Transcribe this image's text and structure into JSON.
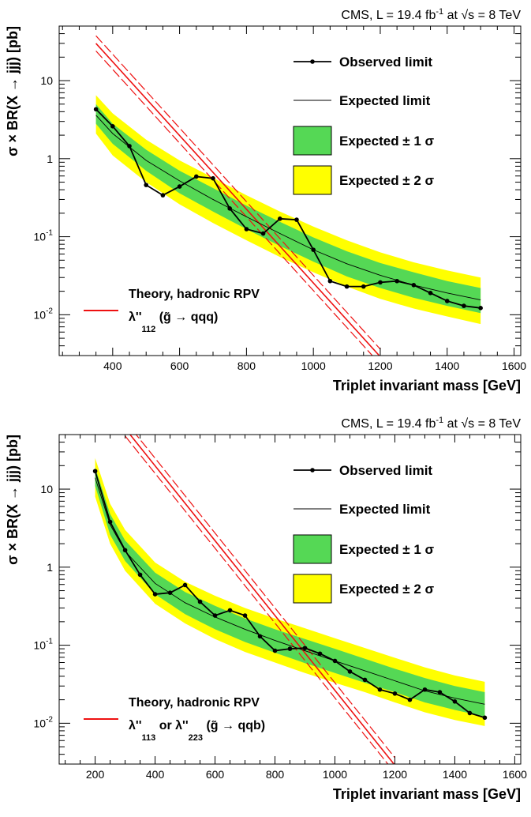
{
  "chart_data": [
    {
      "type": "line",
      "header": "CMS, L = 19.4 fb⁻¹ at √s  =  8 TeV",
      "header_parts": {
        "pre": "CMS, L = 19.4 fb",
        "sup": "-1",
        "mid": " at ",
        "root": "√s",
        "post": "  =  8 TeV"
      },
      "xlabel": "Triplet invariant mass [GeV]",
      "ylabel": "σ × BR(X → jjj) [pb]",
      "xlim": [
        240,
        1620
      ],
      "ylim": [
        0.003,
        50
      ],
      "yscale": "log",
      "x_ticks": [
        400,
        600,
        800,
        1000,
        1200,
        1400,
        1600
      ],
      "y_ticks": [
        {
          "value": 0.01,
          "base": "10",
          "exp": "-2"
        },
        {
          "value": 0.1,
          "base": "10",
          "exp": "-1"
        },
        {
          "value": 1,
          "base": "1",
          "exp": ""
        },
        {
          "value": 10,
          "base": "10",
          "exp": ""
        }
      ],
      "legend": {
        "placement": "top-right",
        "observed": "Observed limit",
        "expected": "Expected limit",
        "sigma1": "Expected ± 1 σ",
        "sigma2": "Expected ± 2 σ"
      },
      "theory_legend": {
        "placement": "bottom-left",
        "title": "Theory, hadronic RPV",
        "lambda": "λ''",
        "sub1": "112",
        "or_text": "",
        "sub2": "",
        "process": "(g̃ →  qqq)"
      },
      "colors": {
        "sigma1": "#55d855",
        "sigma2": "#ffff00",
        "theory": "#ee1111",
        "observed": "#000000"
      },
      "series": [
        {
          "name": "Observed limit",
          "x": [
            350,
            400,
            450,
            500,
            550,
            600,
            650,
            700,
            750,
            800,
            850,
            900,
            950,
            1000,
            1050,
            1100,
            1150,
            1200,
            1250,
            1300,
            1350,
            1400,
            1450,
            1500
          ],
          "y": [
            4.3,
            2.6,
            1.45,
            0.46,
            0.34,
            0.44,
            0.59,
            0.56,
            0.23,
            0.125,
            0.11,
            0.17,
            0.165,
            0.068,
            0.027,
            0.023,
            0.023,
            0.026,
            0.027,
            0.024,
            0.019,
            0.015,
            0.013,
            0.0122
          ]
        },
        {
          "name": "Expected limit",
          "x": [
            350,
            400,
            500,
            600,
            700,
            800,
            900,
            1000,
            1100,
            1200,
            1300,
            1400,
            1500
          ],
          "y": [
            3.6,
            2.1,
            0.95,
            0.52,
            0.3,
            0.18,
            0.11,
            0.068,
            0.045,
            0.032,
            0.024,
            0.019,
            0.0155
          ]
        }
      ],
      "band_x": [
        350,
        400,
        500,
        600,
        700,
        800,
        900,
        1000,
        1100,
        1200,
        1300,
        1400,
        1500
      ],
      "band_1sigma_low": [
        2.8,
        1.55,
        0.7,
        0.36,
        0.21,
        0.125,
        0.076,
        0.048,
        0.031,
        0.022,
        0.0165,
        0.013,
        0.0105
      ],
      "band_1sigma_high": [
        5.0,
        2.8,
        1.3,
        0.7,
        0.42,
        0.25,
        0.155,
        0.098,
        0.065,
        0.046,
        0.035,
        0.027,
        0.022
      ],
      "band_2sigma_low": [
        2.1,
        1.1,
        0.5,
        0.26,
        0.15,
        0.09,
        0.055,
        0.035,
        0.023,
        0.016,
        0.012,
        0.0095,
        0.0076
      ],
      "band_2sigma_high": [
        6.5,
        3.8,
        1.75,
        0.95,
        0.57,
        0.34,
        0.21,
        0.135,
        0.09,
        0.063,
        0.047,
        0.037,
        0.03
      ],
      "theory": {
        "x": [
          350,
          1200
        ],
        "y": [
          30,
          0.0029
        ],
        "band_factor": 1.25
      }
    },
    {
      "type": "line",
      "header": "CMS, L = 19.4 fb⁻¹ at √s  =  8 TeV",
      "header_parts": {
        "pre": "CMS, L = 19.4 fb",
        "sup": "-1",
        "mid": " at ",
        "root": "√s",
        "post": "  =  8 TeV"
      },
      "xlabel": "Triplet invariant mass [GeV]",
      "ylabel": "σ × BR(X → jjj) [pb]",
      "xlim": [
        80,
        1620
      ],
      "ylim": [
        0.003,
        50
      ],
      "yscale": "log",
      "x_ticks": [
        200,
        400,
        600,
        800,
        1000,
        1200,
        1400,
        1600
      ],
      "y_ticks": [
        {
          "value": 0.01,
          "base": "10",
          "exp": "-2"
        },
        {
          "value": 0.1,
          "base": "10",
          "exp": "-1"
        },
        {
          "value": 1,
          "base": "1",
          "exp": ""
        },
        {
          "value": 10,
          "base": "10",
          "exp": ""
        }
      ],
      "legend": {
        "placement": "top-right",
        "observed": "Observed limit",
        "expected": "Expected limit",
        "sigma1": "Expected ± 1 σ",
        "sigma2": "Expected ± 2 σ"
      },
      "theory_legend": {
        "placement": "bottom-left",
        "title": "Theory, hadronic RPV",
        "lambda": "λ''",
        "sub1": "113",
        "or_text": " or λ''",
        "sub2": "223",
        "process": "(g̃ → qqb)"
      },
      "colors": {
        "sigma1": "#55d855",
        "sigma2": "#ffff00",
        "theory": "#ee1111",
        "observed": "#000000"
      },
      "series": [
        {
          "name": "Observed limit",
          "x": [
            200,
            250,
            300,
            350,
            400,
            450,
            500,
            550,
            600,
            650,
            700,
            750,
            800,
            850,
            900,
            950,
            1000,
            1050,
            1100,
            1150,
            1200,
            1250,
            1300,
            1350,
            1400,
            1450,
            1500
          ],
          "y": [
            17,
            3.8,
            1.65,
            0.8,
            0.45,
            0.47,
            0.59,
            0.36,
            0.24,
            0.28,
            0.24,
            0.13,
            0.085,
            0.09,
            0.092,
            0.078,
            0.063,
            0.046,
            0.036,
            0.027,
            0.024,
            0.02,
            0.027,
            0.025,
            0.019,
            0.0135,
            0.0118
          ]
        },
        {
          "name": "Expected limit",
          "x": [
            200,
            250,
            300,
            400,
            500,
            600,
            700,
            800,
            900,
            1000,
            1100,
            1200,
            1300,
            1400,
            1500
          ],
          "y": [
            14,
            3.5,
            1.6,
            0.62,
            0.35,
            0.23,
            0.16,
            0.115,
            0.085,
            0.063,
            0.047,
            0.035,
            0.026,
            0.021,
            0.0175
          ]
        }
      ],
      "band_x": [
        200,
        250,
        300,
        400,
        500,
        600,
        700,
        800,
        900,
        1000,
        1100,
        1200,
        1300,
        1400,
        1500
      ],
      "band_1sigma_low": [
        11,
        2.6,
        1.2,
        0.45,
        0.25,
        0.16,
        0.11,
        0.08,
        0.059,
        0.044,
        0.033,
        0.025,
        0.0185,
        0.0148,
        0.0122
      ],
      "band_1sigma_high": [
        19,
        4.8,
        2.2,
        0.85,
        0.48,
        0.32,
        0.22,
        0.16,
        0.12,
        0.09,
        0.067,
        0.05,
        0.038,
        0.03,
        0.025
      ],
      "band_2sigma_low": [
        8,
        2.0,
        0.9,
        0.34,
        0.19,
        0.12,
        0.082,
        0.06,
        0.044,
        0.033,
        0.025,
        0.0185,
        0.0138,
        0.011,
        0.0092
      ],
      "band_2sigma_high": [
        25,
        6.5,
        3.0,
        1.15,
        0.65,
        0.43,
        0.3,
        0.22,
        0.165,
        0.123,
        0.092,
        0.069,
        0.052,
        0.041,
        0.034
      ],
      "theory": {
        "x": [
          300,
          1200
        ],
        "y": [
          60,
          0.0029
        ],
        "band_factor": 1.25
      }
    }
  ]
}
